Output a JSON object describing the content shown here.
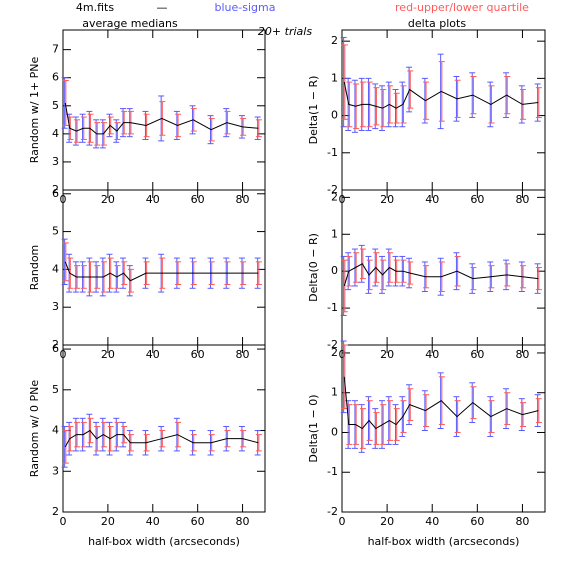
{
  "header": {
    "file": "4m.fits",
    "dash": "—",
    "sigma": "blue-sigma",
    "quartile": "red-upper/lower quartile",
    "left": "average medians",
    "trials": "20+ trials",
    "right": "delta plots",
    "sigma_color": "#5a5aff",
    "quartile_color": "#ff5a5a"
  },
  "chart_data": [
    {
      "type": "line",
      "ylabel": "Random w/ 1+ PNe",
      "xlim": [
        0,
        90
      ],
      "xticks": [
        0,
        20,
        40,
        60,
        80
      ],
      "ylim": [
        2,
        7.7
      ],
      "yticks": [
        2,
        3,
        4,
        5,
        6,
        7
      ],
      "x": [
        1,
        3,
        6,
        9,
        12,
        15,
        18,
        21,
        24,
        27,
        30,
        37,
        44,
        51,
        58,
        66,
        73,
        80,
        87
      ],
      "series": [
        {
          "color": "#000000",
          "values": [
            5.1,
            4.2,
            4.1,
            4.2,
            4.2,
            4.0,
            4.0,
            4.3,
            4.1,
            4.4,
            4.4,
            4.3,
            4.55,
            4.3,
            4.5,
            4.15,
            4.4,
            4.25,
            4.2
          ],
          "sigma": [
            0.9,
            0.5,
            0.5,
            0.5,
            0.6,
            0.5,
            0.5,
            0.4,
            0.4,
            0.5,
            0.5,
            0.5,
            0.8,
            0.5,
            0.5,
            0.5,
            0.5,
            0.4,
            0.4
          ],
          "quartile": [
            0.8,
            0.4,
            0.4,
            0.4,
            0.5,
            0.4,
            0.4,
            0.3,
            0.3,
            0.4,
            0.4,
            0.4,
            0.6,
            0.4,
            0.4,
            0.4,
            0.4,
            0.3,
            0.3
          ]
        }
      ]
    },
    {
      "type": "line",
      "ylabel": "Random",
      "xlim": [
        0,
        90
      ],
      "xticks": [
        0,
        20,
        40,
        60,
        80
      ],
      "ylim": [
        2,
        6.1
      ],
      "yticks": [
        2,
        3,
        4,
        5,
        6
      ],
      "x": [
        1,
        3,
        6,
        9,
        12,
        15,
        18,
        21,
        24,
        27,
        30,
        37,
        44,
        51,
        58,
        66,
        73,
        80,
        87
      ],
      "series": [
        {
          "color": "#000000",
          "values": [
            4.2,
            3.9,
            3.8,
            3.8,
            3.8,
            3.8,
            3.8,
            3.9,
            3.8,
            3.9,
            3.7,
            3.9,
            3.9,
            3.9,
            3.9,
            3.9,
            3.9,
            3.9,
            3.9
          ],
          "sigma": [
            0.6,
            0.5,
            0.4,
            0.4,
            0.5,
            0.4,
            0.5,
            0.5,
            0.4,
            0.4,
            0.4,
            0.4,
            0.5,
            0.4,
            0.4,
            0.4,
            0.4,
            0.4,
            0.4
          ],
          "quartile": [
            0.5,
            0.4,
            0.3,
            0.3,
            0.4,
            0.3,
            0.4,
            0.4,
            0.3,
            0.3,
            0.3,
            0.3,
            0.4,
            0.3,
            0.3,
            0.3,
            0.3,
            0.3,
            0.3
          ]
        }
      ]
    },
    {
      "type": "line",
      "ylabel": "Random w/ 0 PNe",
      "xlabel": "half-box width (arcseconds)",
      "xlim": [
        0,
        90
      ],
      "xticks": [
        0,
        20,
        40,
        60,
        80
      ],
      "ylim": [
        2,
        6.1
      ],
      "yticks": [
        2,
        3,
        4,
        5,
        6
      ],
      "x": [
        1,
        3,
        6,
        9,
        12,
        15,
        18,
        21,
        24,
        27,
        30,
        37,
        44,
        51,
        58,
        66,
        73,
        80,
        87
      ],
      "series": [
        {
          "color": "#000000",
          "values": [
            3.6,
            3.8,
            3.9,
            3.9,
            4.0,
            3.8,
            3.9,
            3.8,
            3.9,
            3.9,
            3.7,
            3.7,
            3.8,
            3.9,
            3.7,
            3.7,
            3.8,
            3.8,
            3.7
          ],
          "sigma": [
            0.5,
            0.4,
            0.4,
            0.4,
            0.4,
            0.4,
            0.4,
            0.4,
            0.4,
            0.3,
            0.3,
            0.3,
            0.3,
            0.4,
            0.3,
            0.3,
            0.3,
            0.3,
            0.3
          ],
          "quartile": [
            0.4,
            0.3,
            0.3,
            0.3,
            0.3,
            0.3,
            0.3,
            0.3,
            0.3,
            0.2,
            0.2,
            0.2,
            0.2,
            0.3,
            0.2,
            0.2,
            0.2,
            0.2,
            0.2
          ]
        }
      ]
    },
    {
      "type": "line",
      "ylabel": "Delta(1 − R)",
      "xlim": [
        0,
        90
      ],
      "xticks": [
        0,
        20,
        40,
        60,
        80
      ],
      "ylim": [
        -2,
        2.3
      ],
      "yticks": [
        -2,
        -1,
        0,
        1,
        2
      ],
      "x": [
        1,
        3,
        6,
        9,
        12,
        15,
        18,
        21,
        24,
        27,
        30,
        37,
        44,
        51,
        58,
        66,
        73,
        80,
        87
      ],
      "series": [
        {
          "color": "#000000",
          "values": [
            0.9,
            0.3,
            0.25,
            0.3,
            0.3,
            0.25,
            0.2,
            0.3,
            0.2,
            0.3,
            0.7,
            0.4,
            0.65,
            0.45,
            0.55,
            0.3,
            0.55,
            0.3,
            0.35
          ],
          "sigma": [
            1.2,
            0.7,
            0.7,
            0.7,
            0.7,
            0.6,
            0.6,
            0.6,
            0.5,
            0.6,
            0.6,
            0.6,
            1.0,
            0.6,
            0.6,
            0.6,
            0.6,
            0.5,
            0.5
          ],
          "quartile": [
            1.0,
            0.6,
            0.6,
            0.6,
            0.6,
            0.5,
            0.5,
            0.5,
            0.4,
            0.5,
            0.5,
            0.5,
            0.8,
            0.5,
            0.5,
            0.5,
            0.5,
            0.4,
            0.4
          ]
        }
      ]
    },
    {
      "type": "line",
      "ylabel": "Delta(0 − R)",
      "xlim": [
        0,
        90
      ],
      "xticks": [
        0,
        20,
        40,
        60,
        80
      ],
      "ylim": [
        -2,
        2.2
      ],
      "yticks": [
        -2,
        -1,
        0,
        1,
        2
      ],
      "x": [
        1,
        3,
        6,
        9,
        12,
        15,
        18,
        21,
        24,
        27,
        30,
        37,
        44,
        51,
        58,
        66,
        73,
        80,
        87
      ],
      "series": [
        {
          "color": "#000000",
          "values": [
            -0.4,
            0,
            0.1,
            0.2,
            -0.1,
            0.1,
            -0.1,
            0.1,
            0,
            0,
            -0.05,
            -0.15,
            -0.15,
            0,
            -0.2,
            -0.15,
            -0.1,
            -0.15,
            -0.2
          ],
          "sigma": [
            0.8,
            0.5,
            0.5,
            0.5,
            0.5,
            0.5,
            0.5,
            0.5,
            0.4,
            0.4,
            0.4,
            0.4,
            0.5,
            0.5,
            0.4,
            0.4,
            0.4,
            0.4,
            0.4
          ],
          "quartile": [
            0.7,
            0.4,
            0.4,
            0.4,
            0.4,
            0.4,
            0.4,
            0.4,
            0.3,
            0.3,
            0.3,
            0.3,
            0.4,
            0.4,
            0.3,
            0.3,
            0.3,
            0.3,
            0.3
          ]
        }
      ]
    },
    {
      "type": "line",
      "ylabel": "Delta(1 − 0)",
      "xlabel": "half-box width (arcseconds)",
      "xlim": [
        0,
        90
      ],
      "xticks": [
        0,
        20,
        40,
        60,
        80
      ],
      "ylim": [
        -2,
        2.2
      ],
      "yticks": [
        -2,
        -1,
        0,
        1,
        2
      ],
      "x": [
        1,
        3,
        6,
        9,
        12,
        15,
        18,
        21,
        24,
        27,
        30,
        37,
        44,
        51,
        58,
        66,
        73,
        80,
        87
      ],
      "series": [
        {
          "color": "#000000",
          "values": [
            1.4,
            0.2,
            0.2,
            0.1,
            0.3,
            0.1,
            0.2,
            0.3,
            0.2,
            0.4,
            0.7,
            0.55,
            0.8,
            0.4,
            0.75,
            0.4,
            0.6,
            0.45,
            0.55
          ],
          "sigma": [
            0.9,
            0.6,
            0.6,
            0.6,
            0.6,
            0.5,
            0.6,
            0.6,
            0.5,
            0.5,
            0.5,
            0.5,
            0.7,
            0.5,
            0.5,
            0.5,
            0.5,
            0.4,
            0.4
          ],
          "quartile": [
            0.8,
            0.5,
            0.5,
            0.5,
            0.5,
            0.4,
            0.5,
            0.5,
            0.4,
            0.4,
            0.4,
            0.4,
            0.6,
            0.4,
            0.4,
            0.4,
            0.4,
            0.3,
            0.3
          ]
        }
      ]
    }
  ]
}
